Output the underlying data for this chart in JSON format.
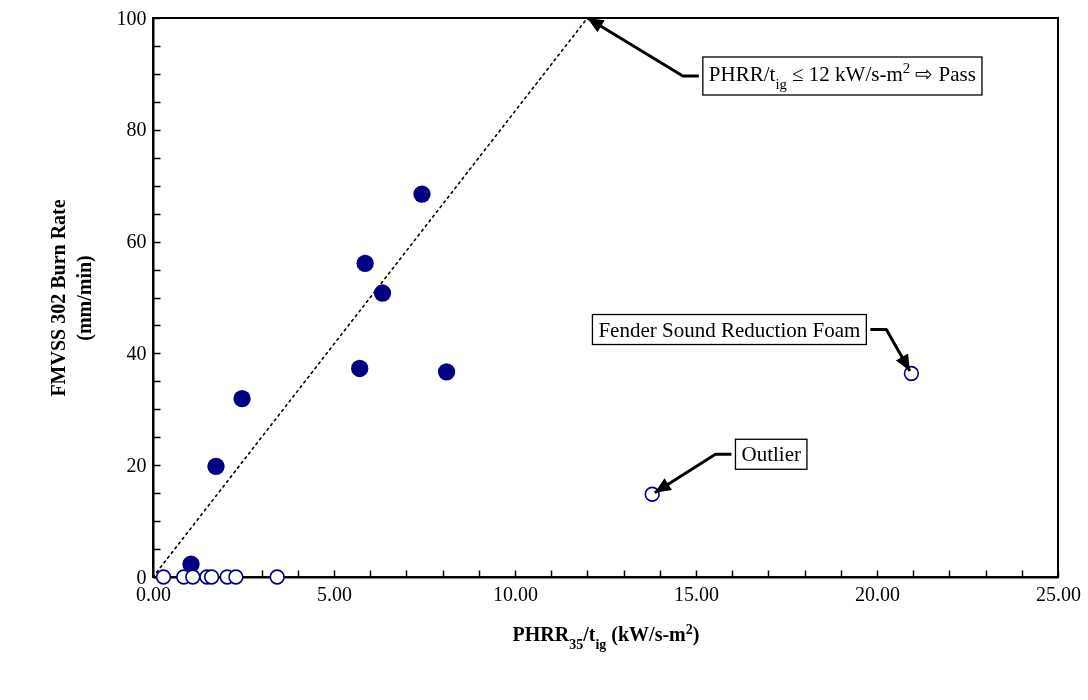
{
  "chart_data": {
    "type": "scatter",
    "xlabel": "PHRR$_{35}$/t$_{ig}$ (kW/s-m$^{2}$)",
    "ylabel": "FMVSS 302 Burn Rate\n(mm/min)",
    "xlim": [
      0,
      25
    ],
    "ylim": [
      0,
      100
    ],
    "xticks": [
      {
        "value": 0,
        "label": "0.00"
      },
      {
        "value": 1,
        "label": null
      },
      {
        "value": 2,
        "label": null
      },
      {
        "value": 3,
        "label": null
      },
      {
        "value": 4,
        "label": null
      },
      {
        "value": 5,
        "label": "5.00"
      },
      {
        "value": 6,
        "label": null
      },
      {
        "value": 7,
        "label": null
      },
      {
        "value": 8,
        "label": null
      },
      {
        "value": 9,
        "label": null
      },
      {
        "value": 10,
        "label": "10.00"
      },
      {
        "value": 11,
        "label": null
      },
      {
        "value": 12,
        "label": null
      },
      {
        "value": 13,
        "label": null
      },
      {
        "value": 14,
        "label": null
      },
      {
        "value": 15,
        "label": "15.00"
      },
      {
        "value": 16,
        "label": null
      },
      {
        "value": 17,
        "label": null
      },
      {
        "value": 18,
        "label": null
      },
      {
        "value": 19,
        "label": null
      },
      {
        "value": 20,
        "label": "20.00"
      },
      {
        "value": 21,
        "label": null
      },
      {
        "value": 22,
        "label": null
      },
      {
        "value": 23,
        "label": null
      },
      {
        "value": 24,
        "label": null
      },
      {
        "value": 25,
        "label": "25.00"
      }
    ],
    "yticks": [
      0,
      {
        "value": 5,
        "label": null
      },
      {
        "value": 10,
        "label": null
      },
      {
        "value": 15,
        "label": null
      },
      20,
      {
        "value": 25,
        "label": null
      },
      {
        "value": 30,
        "label": null
      },
      {
        "value": 35,
        "label": null
      },
      40,
      {
        "value": 45,
        "label": null
      },
      {
        "value": 50,
        "label": null
      },
      {
        "value": 55,
        "label": null
      },
      60,
      {
        "value": 65,
        "label": null
      },
      {
        "value": 70,
        "label": null
      },
      {
        "value": 75,
        "label": null
      },
      80,
      {
        "value": 85,
        "label": null
      },
      {
        "value": 90,
        "label": null
      },
      {
        "value": 95,
        "label": null
      },
      100
    ],
    "grid": false,
    "marker": "circle",
    "series": [
      {
        "type": "line",
        "color": "#000000",
        "line_style": "dotted",
        "marker": "none",
        "x": [
          0,
          12
        ],
        "values": [
          0,
          100
        ]
      },
      {
        "color": "#000080",
        "x": [
          1.05,
          1.74,
          2.46,
          5.71,
          5.86,
          6.34,
          7.43,
          8.11
        ],
        "values": [
          2.3,
          19.8,
          31.9,
          37.3,
          56.1,
          50.8,
          68.5,
          36.7
        ]
      },
      {
        "color": "#000080",
        "x": [
          0.29,
          0.85,
          1.1,
          1.49,
          1.62,
          2.05,
          2.29,
          3.43,
          13.79,
          20.95
        ],
        "values": [
          0,
          0,
          0,
          0,
          0,
          0,
          0,
          0,
          14.8,
          36.4
        ]
      }
    ],
    "annotations": [
      {
        "text": "PHRR/t$_{ig}$ ≤ 12 kW/s-m$^{2}$ ⇨ Pass",
        "x": 12,
        "y": 100
      },
      {
        "text": "Fender Sound Reduction Foam",
        "x": 20.95,
        "y": 36.4
      },
      {
        "text": "Outlier",
        "x": 13.79,
        "y": 14.8
      }
    ]
  }
}
